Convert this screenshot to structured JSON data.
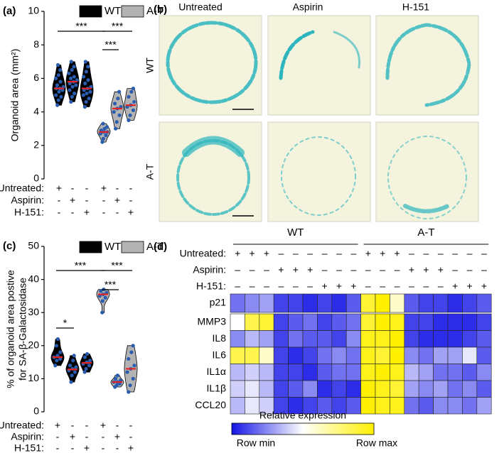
{
  "chart_data": [
    {
      "type": "violin",
      "panel_label": "(a)",
      "y_label": [
        "Organoid area (mm²)"
      ],
      "ylim": [
        0,
        10
      ],
      "yticks": [
        0,
        2,
        4,
        6,
        8,
        10
      ],
      "series": [
        {
          "name": "WT",
          "color": "#000000"
        },
        {
          "name": "A-T",
          "color": "#b3b3b3"
        }
      ],
      "median_color": "#e8231f",
      "point_color": "#2a5db0",
      "groups": [
        {
          "series": 0,
          "median": 5.4,
          "points": [
            4.4,
            4.7,
            4.9,
            5.0,
            5.2,
            5.3,
            5.4,
            5.4,
            5.5,
            5.6,
            5.8,
            6.0,
            6.2,
            6.5,
            6.8
          ]
        },
        {
          "series": 0,
          "median": 5.8,
          "points": [
            4.6,
            4.9,
            5.1,
            5.3,
            5.5,
            5.6,
            5.7,
            5.8,
            5.9,
            6.0,
            6.1,
            6.3,
            6.5,
            6.7,
            7.0
          ]
        },
        {
          "series": 0,
          "median": 5.4,
          "points": [
            4.3,
            4.6,
            4.8,
            5.0,
            5.1,
            5.2,
            5.3,
            5.4,
            5.5,
            5.7,
            5.9,
            6.1,
            6.4,
            6.7,
            7.0
          ]
        },
        {
          "series": 1,
          "median": 2.8,
          "points": [
            2.2,
            2.4,
            2.6,
            2.7,
            2.8,
            2.8,
            2.9,
            3.0,
            3.1,
            3.3
          ]
        },
        {
          "series": 1,
          "median": 4.2,
          "points": [
            3.0,
            3.4,
            3.8,
            4.0,
            4.2,
            4.3,
            4.5,
            4.8,
            5.2
          ]
        },
        {
          "series": 1,
          "median": 4.4,
          "points": [
            3.5,
            3.8,
            4.1,
            4.3,
            4.4,
            4.6,
            4.9,
            5.2,
            5.4
          ]
        }
      ],
      "conditions": [
        {
          "label": "Untreated:",
          "marks": [
            "+",
            "-",
            "-",
            "+",
            "-",
            "-"
          ]
        },
        {
          "label": "Aspirin:",
          "marks": [
            "-",
            "+",
            "-",
            "-",
            "+",
            "-"
          ]
        },
        {
          "label": "H-151:",
          "marks": [
            "-",
            "-",
            "+",
            "-",
            "-",
            "+"
          ]
        }
      ],
      "significance": [
        {
          "from": 0,
          "to": 3,
          "label": "***"
        },
        {
          "from": 3,
          "to": 5,
          "label": "***"
        },
        {
          "from": 3,
          "to": 4,
          "label": "***"
        }
      ]
    },
    {
      "type": "violin",
      "panel_label": "(c)",
      "y_label": [
        "% of organoid area postive",
        "for SA-β-Galactosidase"
      ],
      "ylim": [
        0,
        50
      ],
      "yticks": [
        0,
        10,
        20,
        30,
        40,
        50
      ],
      "series": [
        {
          "name": "WT",
          "color": "#000000"
        },
        {
          "name": "A-T",
          "color": "#b3b3b3"
        }
      ],
      "median_color": "#e8231f",
      "point_color": "#2a5db0",
      "groups": [
        {
          "series": 0,
          "median": 16.5,
          "points": [
            14,
            15.5,
            16,
            16.5,
            17,
            18,
            20,
            22
          ]
        },
        {
          "series": 0,
          "median": 12.8,
          "points": [
            9,
            11,
            12,
            12.5,
            13,
            13.5,
            14,
            15.5,
            17
          ]
        },
        {
          "series": 0,
          "median": 14.8,
          "points": [
            12,
            13,
            14,
            14.5,
            15,
            15.5,
            16.5,
            17.5
          ]
        },
        {
          "series": 1,
          "median": 35.5,
          "points": [
            30,
            33.5,
            34.5,
            35,
            35.5,
            36,
            36.5,
            37
          ]
        },
        {
          "series": 1,
          "median": 9,
          "points": [
            7.5,
            8,
            8.5,
            9,
            9,
            9.5,
            10,
            11
          ]
        },
        {
          "series": 1,
          "median": 13,
          "points": [
            6,
            8,
            10,
            12,
            13,
            14,
            16,
            18,
            20
          ]
        }
      ],
      "conditions": [
        {
          "label": "Untreated:",
          "marks": [
            "+",
            "-",
            "-",
            "+",
            "-",
            "-"
          ]
        },
        {
          "label": "Aspirin:",
          "marks": [
            "-",
            "+",
            "-",
            "-",
            "+",
            "-"
          ]
        },
        {
          "label": "H-151:",
          "marks": [
            "-",
            "-",
            "+",
            "-",
            "-",
            "+"
          ]
        }
      ],
      "significance": [
        {
          "from": 0,
          "to": 1,
          "label": "*"
        },
        {
          "from": 0,
          "to": 3,
          "label": "***"
        },
        {
          "from": 3,
          "to": 5,
          "label": "***"
        },
        {
          "from": 3,
          "to": 4,
          "label": "***"
        }
      ]
    },
    {
      "type": "heatmap",
      "panel_label": "(d)",
      "column_groups": [
        "WT",
        "A-T"
      ],
      "conditions": [
        {
          "label": "Untreated:",
          "marks": [
            "+",
            "+",
            "+",
            "–",
            "–",
            "–",
            "–",
            "–",
            "–",
            "+",
            "+",
            "+",
            "–",
            "–",
            "–",
            "–",
            "–",
            "–"
          ]
        },
        {
          "label": "Aspirin:",
          "marks": [
            "–",
            "–",
            "–",
            "+",
            "+",
            "+",
            "–",
            "–",
            "–",
            "–",
            "–",
            "–",
            "+",
            "+",
            "+",
            "–",
            "–",
            "–"
          ]
        },
        {
          "label": "H-151:",
          "marks": [
            "–",
            "–",
            "–",
            "–",
            "–",
            "–",
            "+",
            "+",
            "+",
            "–",
            "–",
            "–",
            "–",
            "–",
            "–",
            "+",
            "+",
            "+"
          ]
        }
      ],
      "rows": [
        {
          "label": "p21",
          "values": [
            0.2,
            0.25,
            0.3,
            0.1,
            0.1,
            0.05,
            0.1,
            0.05,
            0.15,
            0.9,
            1,
            0.6,
            0.15,
            0.1,
            0.1,
            0.05,
            0.1,
            0.15
          ]
        },
        {
          "label": "MMP3",
          "values": [
            0.5,
            0.85,
            0.9,
            0.1,
            0.15,
            0.2,
            0.1,
            0.15,
            0.2,
            0.9,
            1,
            0.95,
            0.1,
            0.1,
            0.05,
            0.05,
            0.05,
            0.1
          ]
        },
        {
          "label": "IL8",
          "values": [
            0.25,
            0.35,
            0.3,
            0.1,
            0.2,
            0.15,
            0.15,
            0.1,
            0.25,
            0.95,
            0.95,
            1,
            0.1,
            0.05,
            0.05,
            0.05,
            0.1,
            0.15
          ]
        },
        {
          "label": "IL6",
          "values": [
            0.85,
            0.85,
            0.6,
            0.1,
            0.05,
            0.1,
            0.2,
            0.25,
            0.2,
            0.95,
            0.9,
            1,
            0.25,
            0.2,
            0.3,
            0.3,
            0.45,
            0.15
          ]
        },
        {
          "label": "IL1α",
          "values": [
            0.35,
            0.4,
            0.35,
            0.1,
            0.1,
            0.05,
            0.15,
            0.2,
            0.2,
            0.95,
            1,
            0.95,
            0.35,
            0.3,
            0.2,
            0.2,
            0.15,
            0.25
          ]
        },
        {
          "label": "IL1β",
          "values": [
            0.4,
            0.45,
            0.35,
            0.1,
            0.15,
            0.25,
            0.05,
            0.1,
            0.05,
            1,
            0.95,
            0.9,
            0.3,
            0.25,
            0.3,
            0.2,
            0.25,
            0.15
          ]
        },
        {
          "label": "CCL20",
          "values": [
            0.35,
            0.45,
            0.4,
            0.1,
            0.05,
            0.1,
            0.15,
            0.1,
            0.15,
            1,
            0.95,
            0.95,
            0.2,
            0.15,
            0.25,
            0.25,
            0.2,
            0.3
          ]
        }
      ],
      "clim": [
        0,
        1
      ],
      "colors": [
        "#1414e6",
        "#ffffff",
        "#fff000"
      ],
      "colorbar": {
        "title": "Relative expression",
        "min_label": "Row min",
        "max_label": "Row max"
      }
    }
  ],
  "image_panel": {
    "panel_label": "(b)",
    "columns": [
      "Untreated",
      "Aspirin",
      "H-151"
    ],
    "rows": [
      "WT",
      "A-T"
    ]
  }
}
